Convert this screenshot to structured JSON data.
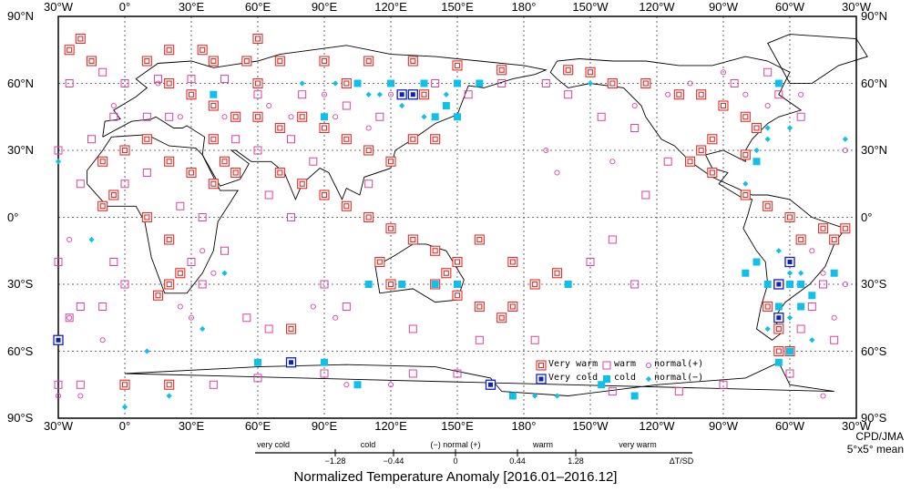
{
  "axes": {
    "lon_labels": [
      "30°W",
      "0°",
      "30°E",
      "60°E",
      "90°E",
      "120°E",
      "150°E",
      "180°",
      "150°W",
      "120°W",
      "90°W",
      "60°W",
      "30°W"
    ],
    "lat_labels": [
      "90°N",
      "60°N",
      "30°N",
      "0°",
      "30°S",
      "60°S",
      "90°S"
    ],
    "lon_range": [
      -30,
      330
    ],
    "lat_range": [
      -90,
      90
    ],
    "grid": true
  },
  "legend": {
    "very_warm": "Very warm",
    "very_cold": "Very cold",
    "warm": "warm",
    "cold": "cold",
    "normal_plus": "normal(+)",
    "normal_minus": "normal(−)"
  },
  "colors": {
    "very_warm": "#e0302a",
    "warm": "#e040a0",
    "very_cold": "#1020c0",
    "cold": "#10c0e8"
  },
  "scale": {
    "categories": [
      "very cold",
      "cold",
      "(−) normal (+)",
      "warm",
      "very warm"
    ],
    "ticks": [
      "−1.28",
      "−0.44",
      "0",
      "0.44",
      "1.28"
    ],
    "unit": "ΔT/SD"
  },
  "title": "Normalized Temperature Anomaly [2016.01–2016.12]",
  "credit": {
    "line1": "CPD/JMA",
    "line2": "5°x5° mean"
  },
  "map_data": {
    "very_warm": [
      [
        -20,
        80
      ],
      [
        -25,
        75
      ],
      [
        -15,
        70
      ],
      [
        10,
        70
      ],
      [
        20,
        75
      ],
      [
        35,
        75
      ],
      [
        60,
        80
      ],
      [
        40,
        70
      ],
      [
        55,
        70
      ],
      [
        70,
        70
      ],
      [
        90,
        70
      ],
      [
        110,
        70
      ],
      [
        130,
        70
      ],
      [
        150,
        68
      ],
      [
        170,
        66
      ],
      [
        -160,
        66
      ],
      [
        -150,
        65
      ],
      [
        -140,
        60
      ],
      [
        -125,
        60
      ],
      [
        -110,
        55
      ],
      [
        -100,
        55
      ],
      [
        -90,
        50
      ],
      [
        -80,
        45
      ],
      [
        -75,
        40
      ],
      [
        -95,
        35
      ],
      [
        -100,
        30
      ],
      [
        -105,
        25
      ],
      [
        -80,
        28
      ],
      [
        -95,
        20
      ],
      [
        -80,
        10
      ],
      [
        -70,
        5
      ],
      [
        -60,
        0
      ],
      [
        -45,
        -5
      ],
      [
        -40,
        -10
      ],
      [
        -35,
        -5
      ],
      [
        -55,
        -10
      ],
      [
        -60,
        -20
      ],
      [
        -65,
        -30
      ],
      [
        -70,
        -40
      ],
      [
        -65,
        -50
      ],
      [
        -65,
        -60
      ],
      [
        20,
        60
      ],
      [
        30,
        55
      ],
      [
        40,
        50
      ],
      [
        50,
        45
      ],
      [
        60,
        45
      ],
      [
        70,
        40
      ],
      [
        80,
        45
      ],
      [
        90,
        40
      ],
      [
        100,
        35
      ],
      [
        110,
        30
      ],
      [
        120,
        25
      ],
      [
        130,
        35
      ],
      [
        140,
        35
      ],
      [
        10,
        35
      ],
      [
        0,
        30
      ],
      [
        -10,
        25
      ],
      [
        20,
        25
      ],
      [
        30,
        20
      ],
      [
        40,
        15
      ],
      [
        50,
        20
      ],
      [
        70,
        20
      ],
      [
        80,
        15
      ],
      [
        90,
        10
      ],
      [
        100,
        5
      ],
      [
        110,
        0
      ],
      [
        120,
        -5
      ],
      [
        130,
        -10
      ],
      [
        140,
        -15
      ],
      [
        150,
        -20
      ],
      [
        145,
        -25
      ],
      [
        140,
        -30
      ],
      [
        150,
        -35
      ],
      [
        160,
        -40
      ],
      [
        170,
        -45
      ],
      [
        175,
        -40
      ],
      [
        -10,
        5
      ],
      [
        -5,
        10
      ],
      [
        10,
        0
      ],
      [
        20,
        -10
      ],
      [
        25,
        -25
      ],
      [
        20,
        -30
      ],
      [
        15,
        -35
      ],
      [
        115,
        -20
      ],
      [
        120,
        -30
      ],
      [
        75,
        -50
      ],
      [
        0,
        -75
      ],
      [
        20,
        -75
      ],
      [
        -60,
        -60
      ],
      [
        -165,
        -25
      ],
      [
        -175,
        -30
      ],
      [
        175,
        -20
      ],
      [
        160,
        -10
      ],
      [
        135,
        55
      ],
      [
        100,
        60
      ],
      [
        60,
        60
      ],
      [
        40,
        35
      ],
      [
        45,
        25
      ]
    ],
    "warm": [
      [
        -25,
        60
      ],
      [
        -10,
        65
      ],
      [
        0,
        60
      ],
      [
        15,
        62
      ],
      [
        30,
        62
      ],
      [
        45,
        62
      ],
      [
        60,
        55
      ],
      [
        80,
        55
      ],
      [
        100,
        50
      ],
      [
        115,
        45
      ],
      [
        75,
        35
      ],
      [
        60,
        30
      ],
      [
        50,
        35
      ],
      [
        20,
        45
      ],
      [
        10,
        45
      ],
      [
        -5,
        45
      ],
      [
        -15,
        35
      ],
      [
        0,
        15
      ],
      [
        10,
        20
      ],
      [
        25,
        5
      ],
      [
        35,
        0
      ],
      [
        30,
        -20
      ],
      [
        45,
        -15
      ],
      [
        35,
        -30
      ],
      [
        -10,
        -40
      ],
      [
        0,
        -30
      ],
      [
        -20,
        -40
      ],
      [
        55,
        -45
      ],
      [
        65,
        -50
      ],
      [
        90,
        -30
      ],
      [
        100,
        -40
      ],
      [
        130,
        -50
      ],
      [
        160,
        -55
      ],
      [
        -175,
        -55
      ],
      [
        -150,
        -20
      ],
      [
        -140,
        -10
      ],
      [
        -130,
        -30
      ],
      [
        -115,
        25
      ],
      [
        -130,
        40
      ],
      [
        -145,
        45
      ],
      [
        -160,
        55
      ],
      [
        -170,
        60
      ],
      [
        170,
        60
      ],
      [
        140,
        60
      ],
      [
        155,
        55
      ],
      [
        -30,
        30
      ],
      [
        -20,
        15
      ],
      [
        -45,
        -30
      ],
      [
        -30,
        -20
      ],
      [
        -50,
        -40
      ],
      [
        -55,
        -50
      ],
      [
        -40,
        -55
      ],
      [
        -30,
        -75
      ],
      [
        -60,
        -70
      ],
      [
        -90,
        -75
      ],
      [
        -110,
        -78
      ],
      [
        -140,
        -78
      ],
      [
        40,
        -75
      ],
      [
        60,
        -72
      ],
      [
        90,
        -70
      ],
      [
        130,
        -70
      ],
      [
        150,
        -70
      ],
      [
        -20,
        -75
      ],
      [
        -25,
        -45
      ],
      [
        -5,
        -20
      ],
      [
        75,
        0
      ],
      [
        65,
        10
      ],
      [
        85,
        25
      ],
      [
        110,
        15
      ],
      [
        -125,
        10
      ],
      [
        -85,
        60
      ],
      [
        -65,
        55
      ],
      [
        -55,
        45
      ],
      [
        -70,
        65
      ]
    ],
    "very_cold": [
      [
        -60,
        -20
      ],
      [
        -65,
        -30
      ],
      [
        -65,
        -45
      ],
      [
        -30,
        -55
      ],
      [
        75,
        -65
      ],
      [
        165,
        -75
      ],
      [
        125,
        55
      ],
      [
        130,
        55
      ]
    ],
    "cold": [
      [
        90,
        45
      ],
      [
        105,
        60
      ],
      [
        120,
        60
      ],
      [
        135,
        60
      ],
      [
        150,
        60
      ],
      [
        160,
        60
      ],
      [
        140,
        45
      ],
      [
        145,
        50
      ],
      [
        150,
        45
      ],
      [
        -75,
        -20
      ],
      [
        -70,
        -30
      ],
      [
        -60,
        -30
      ],
      [
        -55,
        -30
      ],
      [
        -65,
        -40
      ],
      [
        -55,
        -40
      ],
      [
        -60,
        -60
      ],
      [
        -65,
        -65
      ],
      [
        110,
        -30
      ],
      [
        125,
        -30
      ],
      [
        140,
        -30
      ],
      [
        150,
        -30
      ],
      [
        60,
        -65
      ],
      [
        90,
        -65
      ],
      [
        105,
        -75
      ],
      [
        175,
        -80
      ],
      [
        -145,
        -75
      ],
      [
        -130,
        -80
      ],
      [
        -160,
        -30
      ],
      [
        -65,
        60
      ],
      [
        -75,
        25
      ],
      [
        40,
        55
      ],
      [
        -80,
        -25
      ],
      [
        -50,
        -35
      ],
      [
        -40,
        -25
      ]
    ],
    "normal_plus": [
      [
        -35,
        30
      ],
      [
        -25,
        -45
      ],
      [
        -5,
        50
      ],
      [
        15,
        60
      ],
      [
        25,
        45
      ],
      [
        45,
        45
      ],
      [
        65,
        50
      ],
      [
        75,
        45
      ],
      [
        90,
        55
      ],
      [
        95,
        45
      ],
      [
        110,
        40
      ],
      [
        120,
        55
      ],
      [
        -170,
        30
      ],
      [
        -165,
        20
      ],
      [
        -140,
        25
      ],
      [
        -130,
        50
      ],
      [
        -115,
        55
      ],
      [
        -105,
        60
      ],
      [
        -90,
        65
      ],
      [
        -80,
        55
      ],
      [
        -70,
        50
      ],
      [
        -55,
        55
      ],
      [
        -45,
        -25
      ],
      [
        -35,
        -30
      ],
      [
        -40,
        -45
      ],
      [
        -50,
        -15
      ],
      [
        -25,
        -10
      ],
      [
        35,
        -15
      ],
      [
        40,
        -25
      ],
      [
        25,
        -40
      ],
      [
        30,
        -45
      ],
      [
        85,
        -40
      ],
      [
        95,
        -45
      ],
      [
        -10,
        -55
      ],
      [
        -20,
        -80
      ],
      [
        -30,
        -80
      ],
      [
        100,
        -75
      ],
      [
        120,
        -75
      ],
      [
        -45,
        -80
      ]
    ],
    "normal_minus": [
      [
        -35,
        35
      ],
      [
        -30,
        25
      ],
      [
        -15,
        -10
      ],
      [
        80,
        60
      ],
      [
        95,
        60
      ],
      [
        110,
        55
      ],
      [
        115,
        55
      ],
      [
        125,
        50
      ],
      [
        135,
        45
      ],
      [
        145,
        55
      ],
      [
        -150,
        60
      ],
      [
        -70,
        40
      ],
      [
        -75,
        30
      ],
      [
        -70,
        35
      ],
      [
        -60,
        40
      ],
      [
        -65,
        -15
      ],
      [
        -60,
        -25
      ],
      [
        -55,
        -25
      ],
      [
        -70,
        -50
      ],
      [
        -60,
        -45
      ],
      [
        -50,
        -55
      ],
      [
        45,
        -25
      ],
      [
        35,
        -50
      ],
      [
        10,
        -60
      ],
      [
        0,
        -85
      ],
      [
        20,
        -80
      ],
      [
        -175,
        -80
      ],
      [
        -165,
        -80
      ],
      [
        -80,
        15
      ]
    ]
  }
}
